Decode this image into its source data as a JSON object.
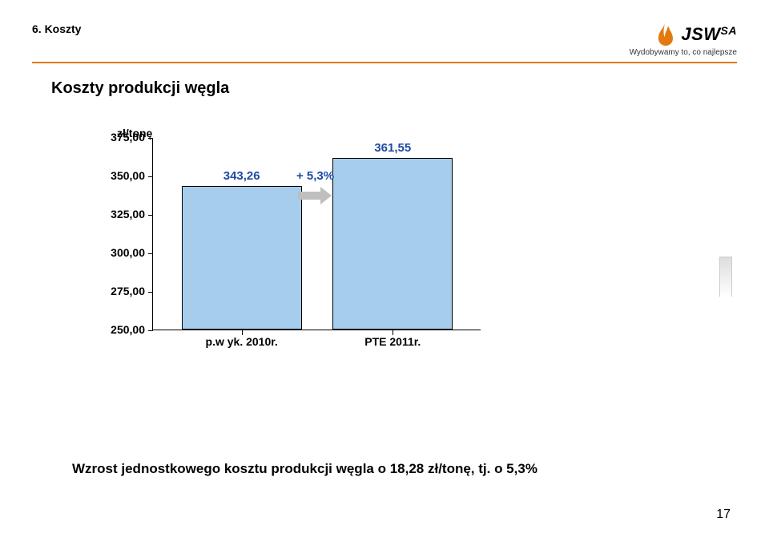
{
  "colors": {
    "brand": "#e37a10",
    "rule": "#e37a10",
    "logo_text": "#1a1a1a",
    "tagline": "#333333",
    "bar_fill": "#a7cdec",
    "bar_border": "#000000",
    "label_blue": "#1f4aa5",
    "arrow_fill": "#bfbfbf",
    "text": "#000000"
  },
  "header": {
    "section_label": "6. Koszty",
    "brand_name": "JSW",
    "brand_suffix": "SA",
    "tagline": "Wydobywamy to, co najlepsze"
  },
  "subtitle": "Koszty produkcji węgla",
  "chart": {
    "type": "bar",
    "y_axis_title": "zł/tonę",
    "ylim": [
      250,
      375
    ],
    "ytick_step": 25,
    "yticks": [
      {
        "v": 250,
        "label": "250,00"
      },
      {
        "v": 275,
        "label": "275,00"
      },
      {
        "v": 300,
        "label": "300,00"
      },
      {
        "v": 325,
        "label": "325,00"
      },
      {
        "v": 350,
        "label": "350,00"
      },
      {
        "v": 375,
        "label": "375,00"
      }
    ],
    "categories": [
      "p.w yk. 2010r.",
      "PTE 2011r."
    ],
    "values": [
      343.26,
      361.55
    ],
    "value_labels": [
      "343,26",
      "361,55"
    ],
    "delta_label": "+ 5,3%",
    "bar_width": 0.7,
    "label_fontsize": 14,
    "title_fontsize": 14
  },
  "footnote": "Wzrost jednostkowego kosztu produkcji węgla o 18,28 zł/tonę, tj. o 5,3%",
  "page_number": "17"
}
